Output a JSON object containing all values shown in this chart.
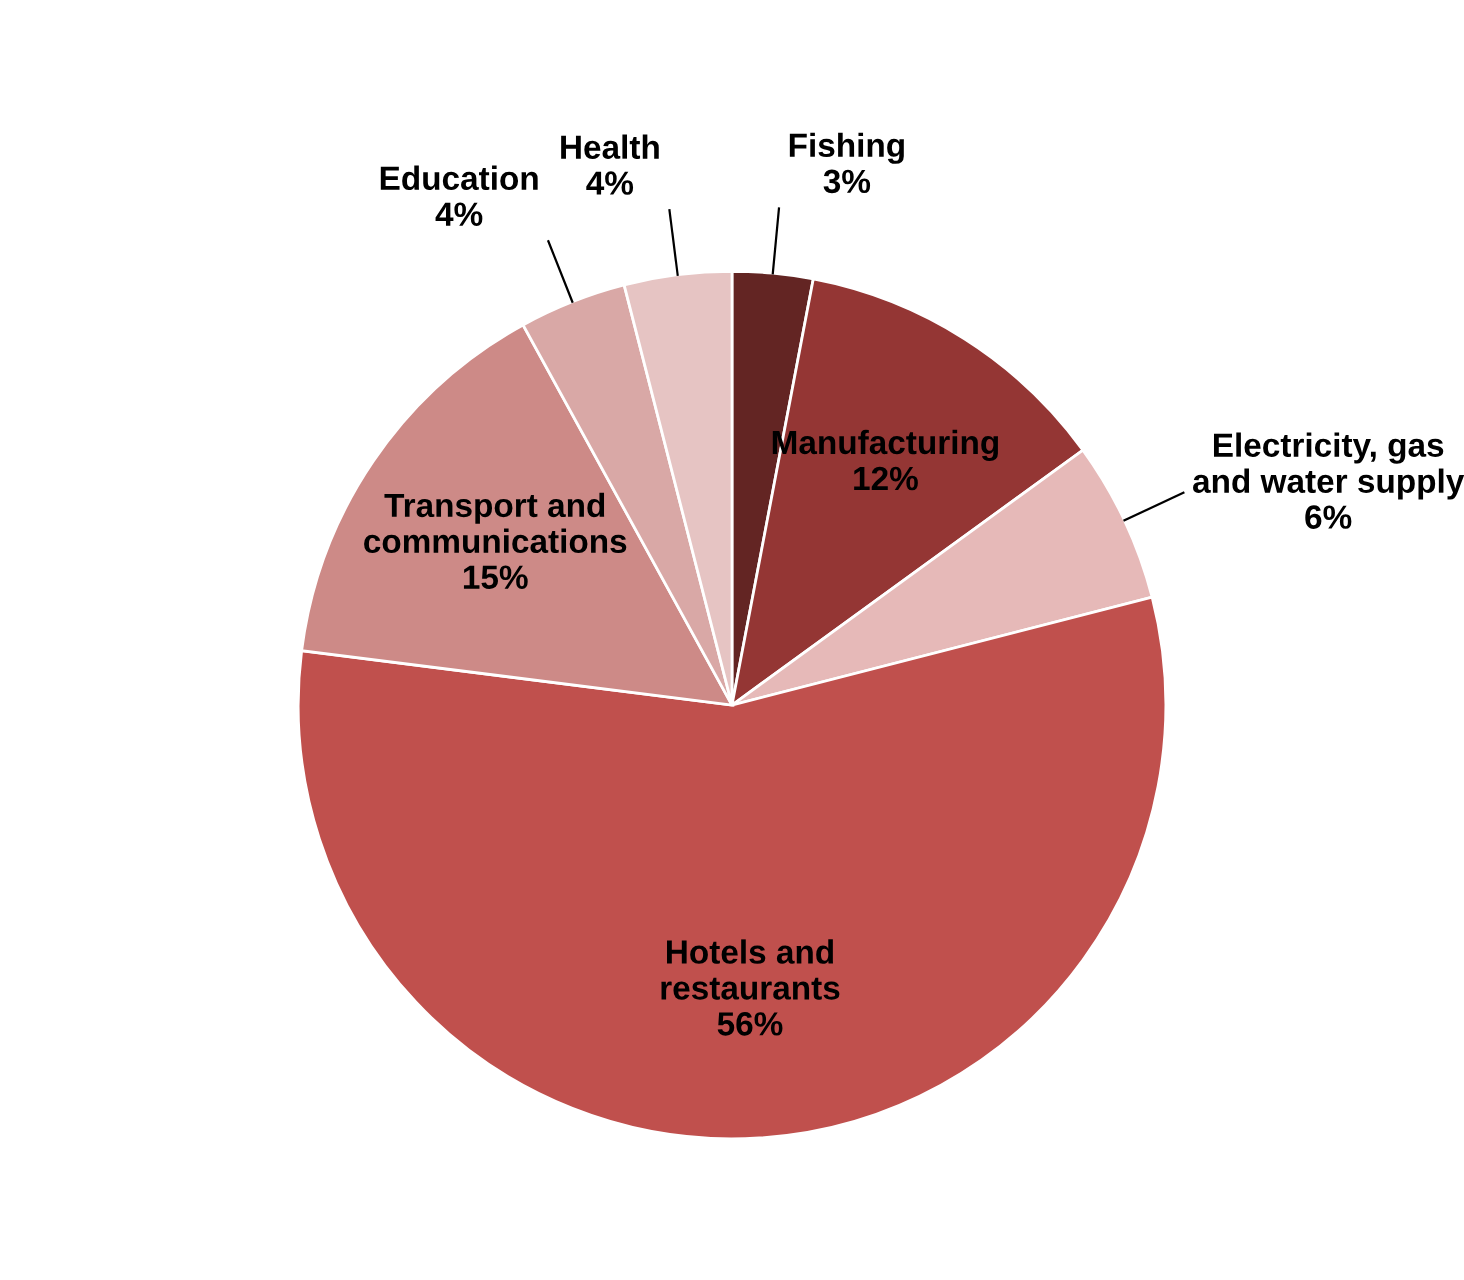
{
  "chart_data": {
    "type": "pie",
    "categories": [
      "Fishing",
      "Manufacturing",
      "Electricity, gas and water supply",
      "Hotels and restaurants",
      "Transport and communications",
      "Education",
      "Health"
    ],
    "values": [
      3,
      12,
      6,
      56,
      15,
      4,
      4
    ],
    "value_labels": [
      "3%",
      "12%",
      "6%",
      "56%",
      "15%",
      "4%",
      "4%"
    ],
    "colors": [
      "#632523",
      "#943634",
      "#e6b9b8",
      "#c0504d",
      "#cd8a87",
      "#d9a8a6",
      "#e6c4c3"
    ],
    "legend": false
  }
}
